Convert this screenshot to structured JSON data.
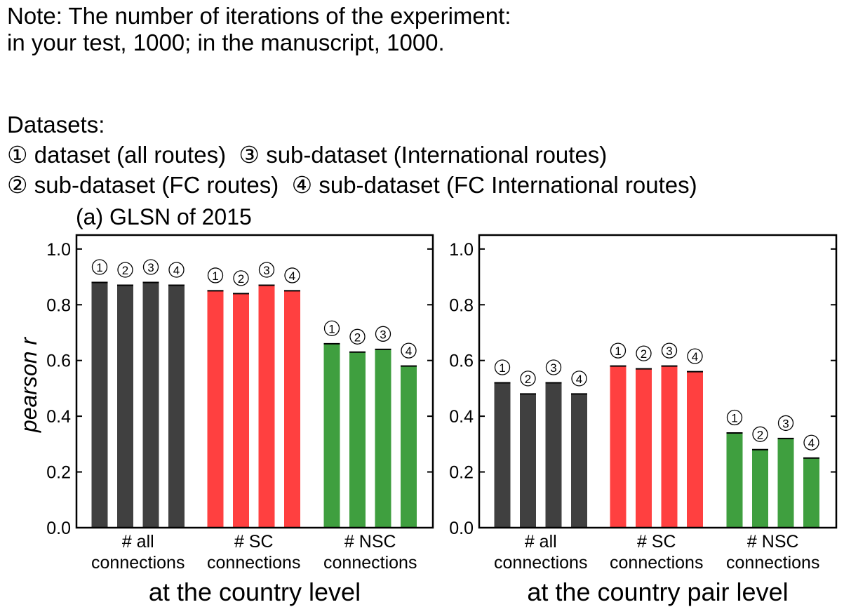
{
  "note": {
    "line1": "Note: The number of iterations of the experiment:",
    "line2": "in your test, 1000; in the manuscript, 1000."
  },
  "datasets": {
    "title": "Datasets:",
    "items": [
      {
        "marker": "①",
        "label": "dataset (all routes)"
      },
      {
        "marker": "③",
        "label": "sub-dataset (International routes)"
      },
      {
        "marker": "②",
        "label": "sub-dataset (FC routes)"
      },
      {
        "marker": "④",
        "label": "sub-dataset (FC International routes)"
      }
    ]
  },
  "panel_title": "(a) GLSN of 2015",
  "colors": {
    "all": "#404040",
    "sc": "#ff4040",
    "nsc": "#3f9f3f",
    "axis": "#000000"
  },
  "chart_data": [
    {
      "type": "bar",
      "title": "",
      "xlabel": "at the country level",
      "ylabel": "pearson r",
      "ylim": [
        0,
        1.05
      ],
      "yticks": [
        "0.0",
        "0.2",
        "0.4",
        "0.6",
        "0.8",
        "1.0"
      ],
      "categories": [
        [
          "# all",
          "connections"
        ],
        [
          "# SC",
          "connections"
        ],
        [
          "# NSC",
          "connections"
        ]
      ],
      "bar_markers": [
        "①",
        "②",
        "③",
        "④"
      ],
      "values": [
        [
          0.88,
          0.87,
          0.88,
          0.87
        ],
        [
          0.85,
          0.84,
          0.87,
          0.85
        ],
        [
          0.66,
          0.63,
          0.64,
          0.58
        ]
      ]
    },
    {
      "type": "bar",
      "title": "",
      "xlabel": "at the country pair level",
      "ylabel": "",
      "ylim": [
        0,
        1.05
      ],
      "yticks": [
        "0.0",
        "0.2",
        "0.4",
        "0.6",
        "0.8",
        "1.0"
      ],
      "categories": [
        [
          "# all",
          "connections"
        ],
        [
          "# SC",
          "connections"
        ],
        [
          "# NSC",
          "connections"
        ]
      ],
      "bar_markers": [
        "①",
        "②",
        "③",
        "④"
      ],
      "values": [
        [
          0.52,
          0.48,
          0.52,
          0.48
        ],
        [
          0.58,
          0.57,
          0.58,
          0.56
        ],
        [
          0.34,
          0.28,
          0.32,
          0.25
        ]
      ]
    }
  ]
}
